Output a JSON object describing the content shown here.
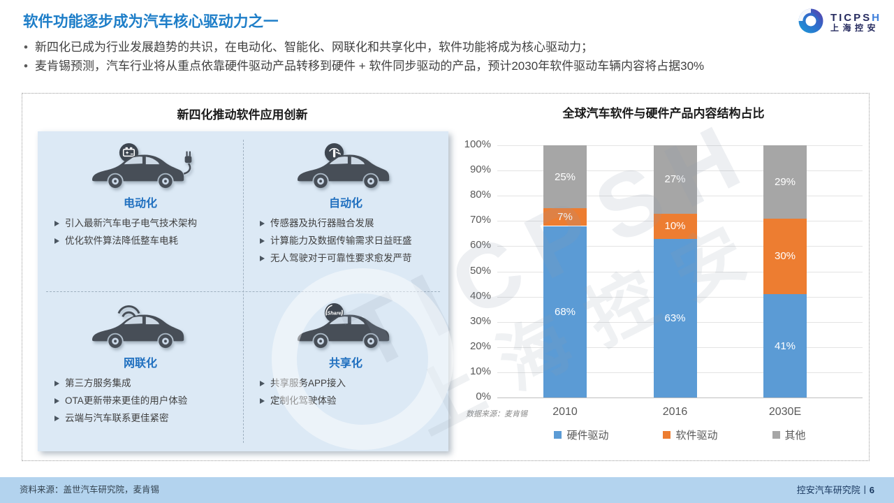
{
  "page": {
    "title": "软件功能逐步成为汽车核心驱动力之一",
    "bullets": [
      "新四化已成为行业发展趋势的共识，在电动化、智能化、网联化和共享化中，软件功能将成为核心驱动力；",
      "麦肯锡预测，汽车行业将从重点依靠硬件驱动产品转移到硬件 + 软件同步驱动的产品，预计2030年软件驱动车辆内容将占据30%"
    ]
  },
  "logo": {
    "brand_prefix": "TICPS",
    "brand_suffix": "H",
    "brand_cn": "上海控安",
    "icon": "swirl-logo-icon"
  },
  "left_panel": {
    "title": "新四化推动软件应用创新",
    "quadrants": [
      {
        "label": "电动化",
        "icon": "electric-car-icon",
        "points": [
          "引入最新汽车电子电气技术架构",
          "优化软件算法降低整车电耗"
        ]
      },
      {
        "label": "自动化",
        "icon": "autonomous-car-icon",
        "points": [
          "传感器及执行器融合发展",
          "计算能力及数据传输需求日益旺盛",
          "无人驾驶对于可靠性要求愈发严苛"
        ]
      },
      {
        "label": "网联化",
        "icon": "connected-car-icon",
        "points": [
          "第三方服务集成",
          "OTA更新带来更佳的用户体验",
          "云端与汽车联系更佳紧密"
        ]
      },
      {
        "label": "共享化",
        "icon": "shared-car-icon",
        "points": [
          "共享服务APP接入",
          "定制化驾驶体验"
        ]
      }
    ]
  },
  "chart": {
    "source_note": "数据来源：麦肯锡"
  },
  "chart_data": {
    "type": "bar",
    "stacked": true,
    "title": "全球汽车软件与硬件产品内容结构占比",
    "categories": [
      "2010",
      "2016",
      "2030E"
    ],
    "series": [
      {
        "name": "硬件驱动",
        "color": "#5B9BD5",
        "values": [
          68,
          63,
          41
        ]
      },
      {
        "name": "软件驱动",
        "color": "#ED7D31",
        "values": [
          7,
          10,
          30
        ]
      },
      {
        "name": "其他",
        "color": "#A6A6A6",
        "values": [
          25,
          27,
          29
        ]
      }
    ],
    "ylim": [
      0,
      100
    ],
    "ytick_step": 10,
    "ytick_suffix": "%",
    "value_suffix": "%",
    "grid": true,
    "legend_position": "bottom"
  },
  "watermark": {
    "text_en": "TICPSH",
    "text_cn": "上海控安"
  },
  "footer": {
    "left": "资料来源：盖世汽车研究院，麦肯锡",
    "right": "控安汽车研究院",
    "divider": "丨",
    "page_number": "6"
  },
  "colors": {
    "title_blue": "#1E7EC8",
    "category_blue": "#1F6FBF",
    "hardware": "#5B9BD5",
    "software": "#ED7D31",
    "other": "#A6A6A6",
    "panel_bg": "#DCE9F5",
    "footer_bar": "#B3D3EE"
  }
}
